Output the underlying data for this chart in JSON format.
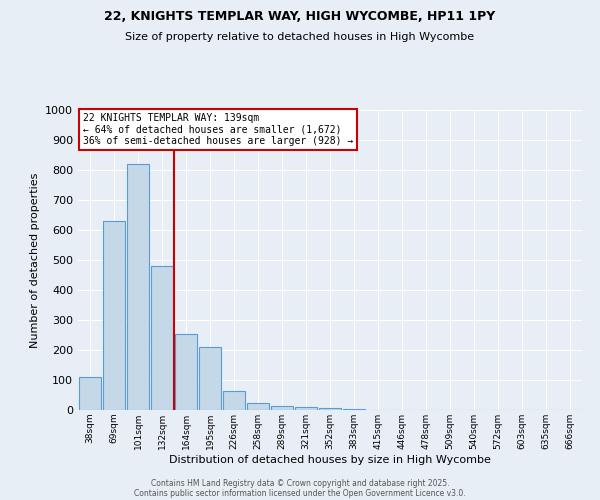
{
  "title1": "22, KNIGHTS TEMPLAR WAY, HIGH WYCOMBE, HP11 1PY",
  "title2": "Size of property relative to detached houses in High Wycombe",
  "xlabel": "Distribution of detached houses by size in High Wycombe",
  "ylabel": "Number of detached properties",
  "categories": [
    "38sqm",
    "69sqm",
    "101sqm",
    "132sqm",
    "164sqm",
    "195sqm",
    "226sqm",
    "258sqm",
    "289sqm",
    "321sqm",
    "352sqm",
    "383sqm",
    "415sqm",
    "446sqm",
    "478sqm",
    "509sqm",
    "540sqm",
    "572sqm",
    "603sqm",
    "635sqm",
    "666sqm"
  ],
  "values": [
    110,
    630,
    820,
    480,
    255,
    210,
    65,
    25,
    15,
    10,
    8,
    5,
    0,
    0,
    0,
    0,
    0,
    0,
    0,
    0,
    0
  ],
  "bar_color": "#c5d8e8",
  "bar_edge_color": "#5b9bd5",
  "red_line_x": 3.5,
  "red_line_color": "#cc0000",
  "annotation_line1": "22 KNIGHTS TEMPLAR WAY: 139sqm",
  "annotation_line2": "← 64% of detached houses are smaller (1,672)",
  "annotation_line3": "36% of semi-detached houses are larger (928) →",
  "annotation_box_color": "#ffffff",
  "annotation_box_edge": "#cc0000",
  "ylim": [
    0,
    1000
  ],
  "yticks": [
    0,
    100,
    200,
    300,
    400,
    500,
    600,
    700,
    800,
    900,
    1000
  ],
  "background_color": "#e8eef5",
  "grid_color": "#ffffff",
  "footer1": "Contains HM Land Registry data © Crown copyright and database right 2025.",
  "footer2": "Contains public sector information licensed under the Open Government Licence v3.0."
}
